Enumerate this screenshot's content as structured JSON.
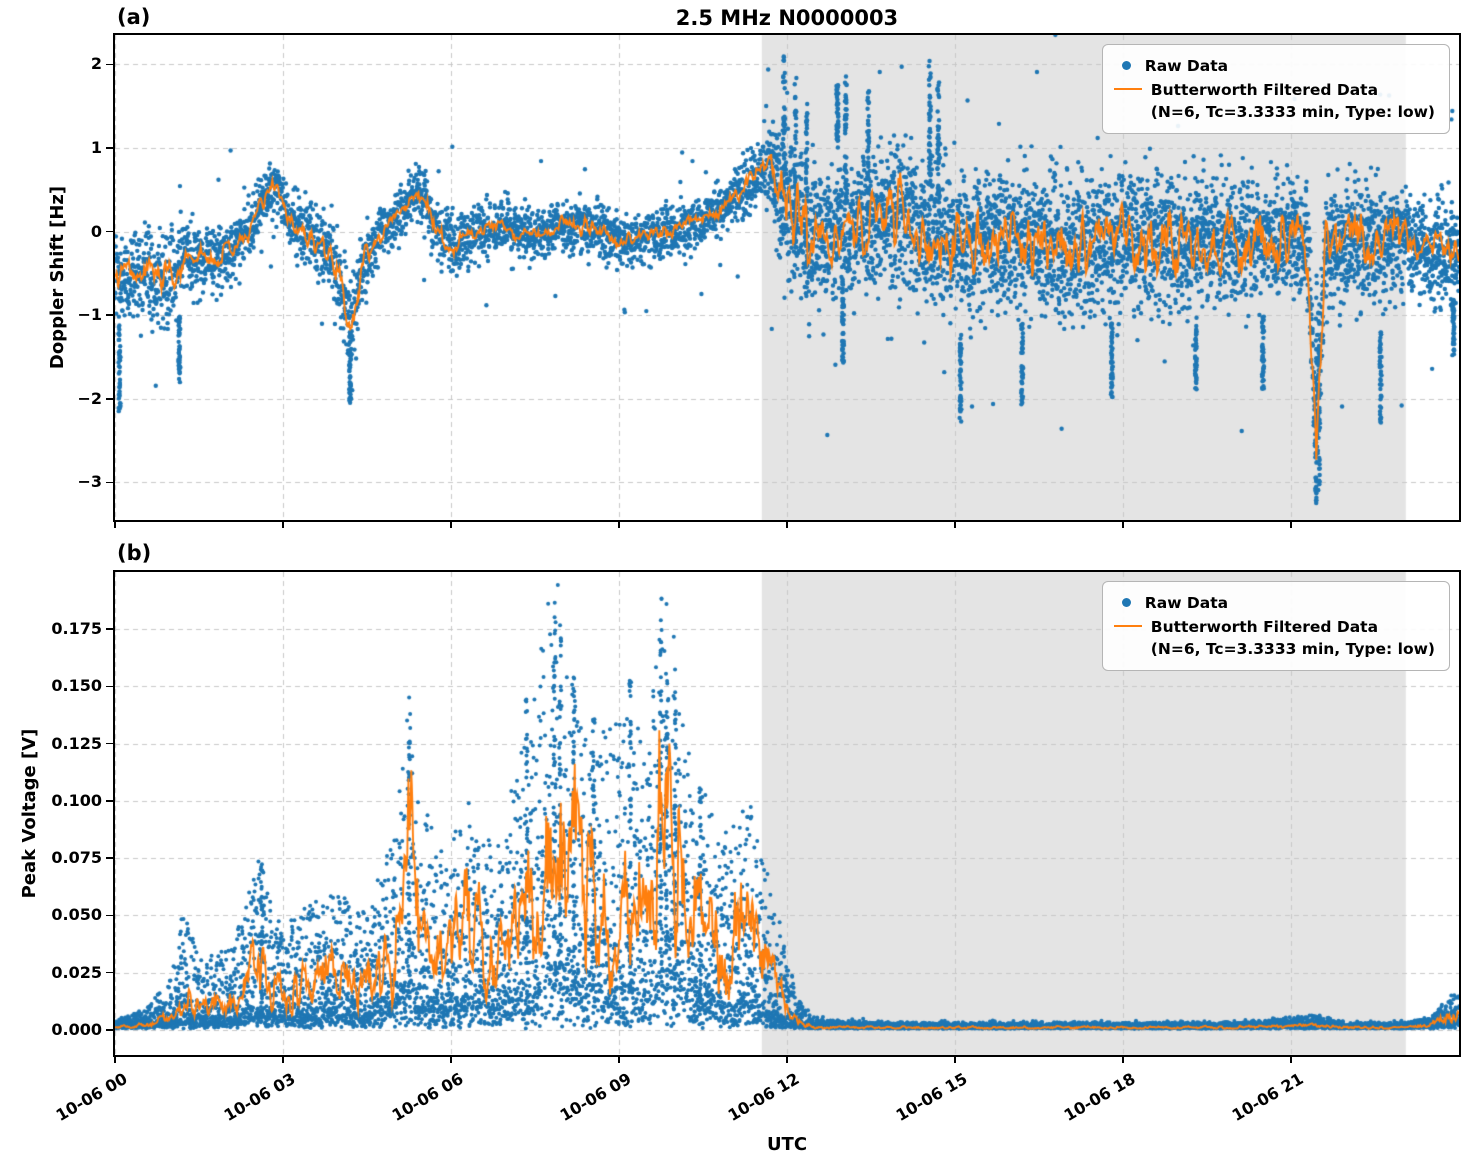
{
  "figure": {
    "title": "2.5 MHz N0000003",
    "panel_a_label": "(a)",
    "panel_b_label": "(b)",
    "xlabel": "UTC",
    "legend": {
      "raw": "Raw Data",
      "filtered_line1": "Butterworth Filtered Data",
      "filtered_line2": "(N=6, Tc=3.3333 min, Type: low)"
    },
    "colors": {
      "raw": "#1f77b4",
      "filtered": "#ff7f0e",
      "shade": "rgba(202,202,202,0.5)",
      "grid": "#c8c8c8",
      "axis": "#000000"
    }
  },
  "chart_data": [
    {
      "id": "panel-a",
      "type": "scatter",
      "title": "2.5 MHz N0000003",
      "xlabel": "UTC",
      "ylabel": "Doppler Shift [Hz]",
      "xlim_hours": [
        0,
        24
      ],
      "ylim": [
        -3.45,
        2.35
      ],
      "grid": true,
      "legend_position": "upper right",
      "shaded_region_hours": [
        11.55,
        23.05
      ],
      "yticks": [
        {
          "v": 2,
          "label": "2"
        },
        {
          "v": 1,
          "label": "1"
        },
        {
          "v": 0,
          "label": "0"
        },
        {
          "v": -1,
          "label": "−1"
        },
        {
          "v": -2,
          "label": "−2"
        },
        {
          "v": -3,
          "label": "−3"
        }
      ],
      "xticks": [
        {
          "h": 0,
          "label": "10-06 00"
        },
        {
          "h": 3,
          "label": "10-06 03"
        },
        {
          "h": 6,
          "label": "10-06 06"
        },
        {
          "h": 9,
          "label": "10-06 09"
        },
        {
          "h": 12,
          "label": "10-06 12"
        },
        {
          "h": 15,
          "label": "10-06 15"
        },
        {
          "h": 18,
          "label": "10-06 18"
        },
        {
          "h": 21,
          "label": "10-06 21"
        }
      ],
      "series": [
        {
          "name": "Raw Data",
          "kind": "scatter",
          "color": "#1f77b4"
        },
        {
          "name": "Butterworth Filtered Data (N=6, Tc=3.3333 min, Type: low)",
          "kind": "line",
          "color": "#ff7f0e"
        }
      ],
      "envelope": {
        "hours": [
          0,
          0.3,
          0.6,
          0.9,
          1.2,
          1.5,
          1.8,
          2.1,
          2.4,
          2.7,
          2.9,
          3.1,
          3.4,
          3.7,
          4.0,
          4.2,
          4.45,
          4.7,
          5.0,
          5.3,
          5.5,
          5.8,
          6.1,
          6.5,
          7.0,
          7.5,
          8.0,
          8.5,
          9.0,
          9.5,
          10.0,
          10.5,
          11.0,
          11.4,
          11.7,
          12.0,
          12.3,
          12.7,
          13.1,
          13.5,
          14.0,
          14.5,
          15.0,
          15.5,
          16.0,
          17.0,
          18.0,
          19.0,
          20.0,
          21.0,
          21.3,
          21.45,
          21.6,
          22.0,
          22.5,
          23.0,
          23.5,
          24.0
        ],
        "center": [
          -0.6,
          -0.45,
          -0.5,
          -0.55,
          -0.4,
          -0.3,
          -0.35,
          -0.2,
          0.0,
          0.45,
          0.55,
          0.15,
          -0.05,
          -0.15,
          -0.5,
          -1.15,
          -0.35,
          -0.05,
          0.1,
          0.4,
          0.45,
          -0.05,
          -0.15,
          0.0,
          0.05,
          -0.05,
          0.1,
          0.05,
          -0.1,
          -0.05,
          0.0,
          0.15,
          0.35,
          0.65,
          0.8,
          0.35,
          0.0,
          -0.1,
          0.05,
          0.1,
          0.25,
          -0.05,
          -0.2,
          -0.15,
          -0.1,
          -0.2,
          -0.1,
          -0.15,
          -0.1,
          -0.05,
          -0.15,
          -2.85,
          -0.2,
          -0.1,
          -0.15,
          -0.1,
          -0.2,
          -0.3
        ],
        "spread": [
          0.55,
          0.5,
          0.55,
          0.6,
          0.5,
          0.45,
          0.4,
          0.4,
          0.35,
          0.3,
          0.3,
          0.35,
          0.4,
          0.45,
          0.5,
          0.55,
          0.45,
          0.35,
          0.3,
          0.3,
          0.35,
          0.45,
          0.4,
          0.3,
          0.35,
          0.3,
          0.3,
          0.35,
          0.3,
          0.3,
          0.3,
          0.3,
          0.35,
          0.4,
          0.6,
          1.0,
          0.9,
          0.75,
          0.7,
          0.75,
          0.9,
          0.75,
          0.8,
          0.8,
          0.8,
          0.85,
          0.8,
          0.8,
          0.75,
          0.7,
          0.75,
          0.5,
          0.7,
          0.7,
          0.7,
          0.7,
          0.6,
          0.55
        ]
      },
      "streaks": [
        {
          "t": 0.08,
          "y0": -2.2,
          "y1": -1.0
        },
        {
          "t": 1.15,
          "y0": -1.85,
          "y1": -1.0
        },
        {
          "t": 4.2,
          "y0": -2.05,
          "y1": -1.2
        },
        {
          "t": 11.95,
          "y0": -0.2,
          "y1": 2.1
        },
        {
          "t": 12.15,
          "y0": -0.5,
          "y1": 1.9
        },
        {
          "t": 12.35,
          "y0": -0.8,
          "y1": 1.6
        },
        {
          "t": 12.9,
          "y0": 1.0,
          "y1": 1.75
        },
        {
          "t": 13.0,
          "y0": -1.6,
          "y1": -0.6
        },
        {
          "t": 13.05,
          "y0": 0.3,
          "y1": 1.9
        },
        {
          "t": 13.45,
          "y0": 0.2,
          "y1": 1.7
        },
        {
          "t": 14.55,
          "y0": 0.5,
          "y1": 2.05
        },
        {
          "t": 14.7,
          "y0": 0.3,
          "y1": 1.85
        },
        {
          "t": 15.1,
          "y0": -2.3,
          "y1": -1.2
        },
        {
          "t": 16.2,
          "y0": -2.1,
          "y1": -1.0
        },
        {
          "t": 17.8,
          "y0": -2.0,
          "y1": -1.1
        },
        {
          "t": 19.3,
          "y0": -1.9,
          "y1": -1.0
        },
        {
          "t": 20.5,
          "y0": -1.9,
          "y1": -1.0
        },
        {
          "t": 21.45,
          "y0": -3.25,
          "y1": -0.5
        },
        {
          "t": 21.5,
          "y0": -3.1,
          "y1": -0.8
        },
        {
          "t": 22.6,
          "y0": -2.3,
          "y1": -1.2
        },
        {
          "t": 23.9,
          "y0": -1.5,
          "y1": -0.8
        }
      ]
    },
    {
      "id": "panel-b",
      "type": "scatter",
      "title": "",
      "xlabel": "UTC",
      "ylabel": "Peak Voltage [V]",
      "xlim_hours": [
        0,
        24
      ],
      "ylim": [
        -0.011,
        0.2
      ],
      "grid": true,
      "legend_position": "upper right",
      "shaded_region_hours": [
        11.55,
        23.05
      ],
      "yticks": [
        {
          "v": 0.0,
          "label": "0.000"
        },
        {
          "v": 0.025,
          "label": "0.025"
        },
        {
          "v": 0.05,
          "label": "0.050"
        },
        {
          "v": 0.075,
          "label": "0.075"
        },
        {
          "v": 0.1,
          "label": "0.100"
        },
        {
          "v": 0.125,
          "label": "0.125"
        },
        {
          "v": 0.15,
          "label": "0.150"
        },
        {
          "v": 0.175,
          "label": "0.175"
        }
      ],
      "xticks": [
        {
          "h": 0,
          "label": "10-06 00"
        },
        {
          "h": 3,
          "label": "10-06 03"
        },
        {
          "h": 6,
          "label": "10-06 06"
        },
        {
          "h": 9,
          "label": "10-06 09"
        },
        {
          "h": 12,
          "label": "10-06 12"
        },
        {
          "h": 15,
          "label": "10-06 15"
        },
        {
          "h": 18,
          "label": "10-06 18"
        },
        {
          "h": 21,
          "label": "10-06 21"
        }
      ],
      "series": [
        {
          "name": "Raw Data",
          "kind": "scatter",
          "color": "#1f77b4"
        },
        {
          "name": "Butterworth Filtered Data (N=6, Tc=3.3333 min, Type: low)",
          "kind": "line",
          "color": "#ff7f0e"
        }
      ],
      "envelope": {
        "hours": [
          0,
          0.5,
          1.0,
          1.2,
          1.5,
          2.0,
          2.3,
          2.6,
          2.8,
          3.0,
          3.3,
          3.6,
          4.0,
          4.3,
          4.6,
          5.0,
          5.25,
          5.45,
          5.7,
          6.0,
          6.3,
          6.6,
          7.0,
          7.3,
          7.6,
          7.85,
          8.1,
          8.35,
          8.6,
          8.9,
          9.2,
          9.5,
          9.75,
          10.0,
          10.3,
          10.6,
          11.0,
          11.3,
          11.6,
          11.9,
          12.2,
          12.5,
          13.0,
          14.0,
          16.0,
          18.0,
          20.0,
          21.5,
          22.0,
          23.0,
          23.5,
          23.8,
          24.0
        ],
        "base": [
          0.001,
          0.002,
          0.006,
          0.012,
          0.008,
          0.01,
          0.016,
          0.028,
          0.018,
          0.014,
          0.018,
          0.02,
          0.022,
          0.018,
          0.022,
          0.03,
          0.09,
          0.038,
          0.034,
          0.03,
          0.044,
          0.034,
          0.04,
          0.05,
          0.062,
          0.105,
          0.075,
          0.058,
          0.052,
          0.048,
          0.062,
          0.044,
          0.1,
          0.068,
          0.045,
          0.04,
          0.036,
          0.042,
          0.028,
          0.014,
          0.004,
          0.0012,
          0.001,
          0.001,
          0.001,
          0.001,
          0.001,
          0.0018,
          0.001,
          0.001,
          0.002,
          0.006,
          0.008
        ],
        "peak": [
          0.003,
          0.007,
          0.022,
          0.052,
          0.028,
          0.032,
          0.048,
          0.073,
          0.05,
          0.04,
          0.047,
          0.052,
          0.056,
          0.046,
          0.056,
          0.078,
          0.126,
          0.092,
          0.08,
          0.076,
          0.086,
          0.076,
          0.092,
          0.115,
          0.155,
          0.187,
          0.145,
          0.125,
          0.122,
          0.118,
          0.155,
          0.108,
          0.19,
          0.148,
          0.1,
          0.092,
          0.082,
          0.092,
          0.07,
          0.04,
          0.012,
          0.004,
          0.003,
          0.002,
          0.002,
          0.002,
          0.002,
          0.005,
          0.002,
          0.002,
          0.004,
          0.012,
          0.016
        ]
      },
      "streaks": [
        {
          "t": 2.62,
          "y0": 0.005,
          "y1": 0.073
        },
        {
          "t": 5.25,
          "y0": 0.01,
          "y1": 0.126
        },
        {
          "t": 7.35,
          "y0": 0.015,
          "y1": 0.15
        },
        {
          "t": 7.85,
          "y0": 0.02,
          "y1": 0.187
        },
        {
          "t": 7.95,
          "y0": 0.02,
          "y1": 0.175
        },
        {
          "t": 8.2,
          "y0": 0.02,
          "y1": 0.165
        },
        {
          "t": 8.55,
          "y0": 0.015,
          "y1": 0.14
        },
        {
          "t": 9.2,
          "y0": 0.015,
          "y1": 0.155
        },
        {
          "t": 9.75,
          "y0": 0.02,
          "y1": 0.19
        },
        {
          "t": 9.85,
          "y0": 0.02,
          "y1": 0.165
        },
        {
          "t": 10.0,
          "y0": 0.01,
          "y1": 0.148
        },
        {
          "t": 10.45,
          "y0": 0.01,
          "y1": 0.11
        }
      ]
    }
  ]
}
